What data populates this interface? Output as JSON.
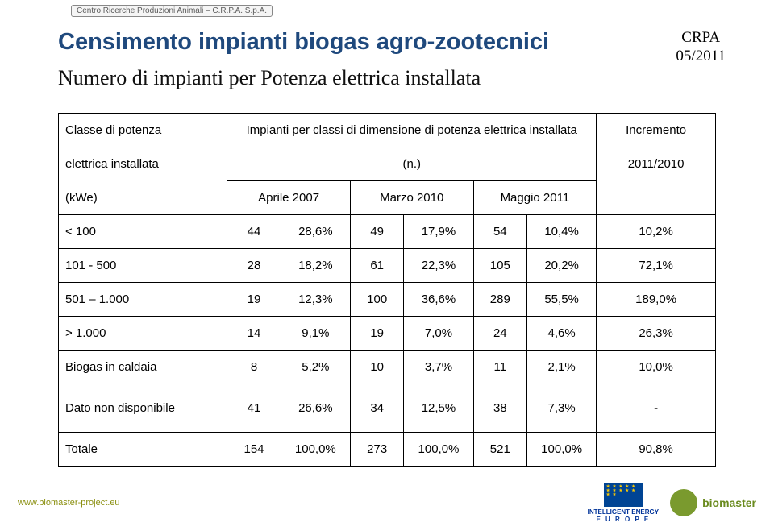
{
  "header_tag": "Centro Ricerche Produzioni Animali – C.R.P.A. S.p.A.",
  "title": "Censimento impianti biogas agro-zootecnici",
  "crpa": {
    "line1": "CRPA",
    "line2": "05/2011"
  },
  "subtitle": "Numero di impianti per Potenza elettrica installata",
  "table": {
    "head": {
      "col1_l1": "Classe di potenza",
      "col1_l2": "elettrica installata",
      "col1_l3": "(kWe)",
      "span_l1": "Impianti per classi di dimensione di potenza elettrica installata",
      "span_l2": "(n.)",
      "sub1": "Aprile 2007",
      "sub2": "Marzo 2010",
      "sub3": "Maggio 2011",
      "inc_l1": "Incremento",
      "inc_l2": "2011/2010"
    },
    "rows": [
      {
        "label": "< 100",
        "a_n": "44",
        "a_p": "28,6%",
        "b_n": "49",
        "b_p": "17,9%",
        "c_n": "54",
        "c_p": "10,4%",
        "inc": "10,2%"
      },
      {
        "label": "101 - 500",
        "a_n": "28",
        "a_p": "18,2%",
        "b_n": "61",
        "b_p": "22,3%",
        "c_n": "105",
        "c_p": "20,2%",
        "inc": "72,1%"
      },
      {
        "label": "501 – 1.000",
        "a_n": "19",
        "a_p": "12,3%",
        "b_n": "100",
        "b_p": "36,6%",
        "c_n": "289",
        "c_p": "55,5%",
        "inc": "189,0%"
      },
      {
        "label": "> 1.000",
        "a_n": "14",
        "a_p": "9,1%",
        "b_n": "19",
        "b_p": "7,0%",
        "c_n": "24",
        "c_p": "4,6%",
        "inc": "26,3%"
      },
      {
        "label": "Biogas in caldaia",
        "a_n": "8",
        "a_p": "5,2%",
        "b_n": "10",
        "b_p": "3,7%",
        "c_n": "11",
        "c_p": "2,1%",
        "inc": "10,0%"
      },
      {
        "label": "Dato non disponibile",
        "a_n": "41",
        "a_p": "26,6%",
        "b_n": "34",
        "b_p": "12,5%",
        "c_n": "38",
        "c_p": "7,3%",
        "inc": "-",
        "tall": true
      },
      {
        "label": "Totale",
        "a_n": "154",
        "a_p": "100,0%",
        "b_n": "273",
        "b_p": "100,0%",
        "c_n": "521",
        "c_p": "100,0%",
        "inc": "90,8%"
      }
    ]
  },
  "footer": {
    "url": "www.biomaster-project.eu",
    "iee_l1": "INTELLIGENT ENERGY",
    "iee_l2": "E U R O P E",
    "bm": "biomaster"
  },
  "colors": {
    "title": "#1f497d",
    "border": "#000000",
    "footer_text": "#8a8f0f",
    "eu_blue": "#004494",
    "eu_gold": "#ffcc00",
    "bm_green": "#7a9a2e"
  }
}
